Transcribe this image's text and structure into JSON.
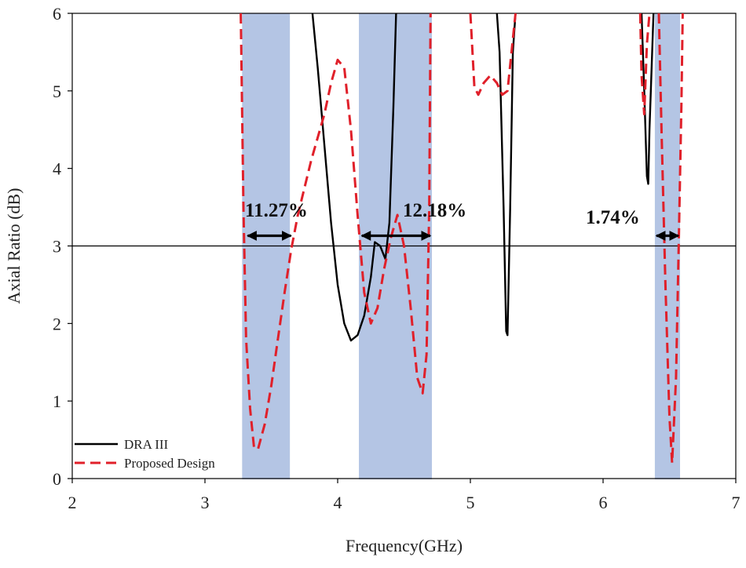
{
  "chart_data": {
    "type": "line",
    "xlabel": "Frequency(GHz)",
    "ylabel": "Axial Ratio (dB)",
    "xlim": [
      2,
      7
    ],
    "ylim": [
      0,
      6
    ],
    "xticks": [
      "2",
      "3",
      "4",
      "5",
      "6",
      "7"
    ],
    "yticks": [
      "0",
      "1",
      "2",
      "3",
      "4",
      "5",
      "6"
    ],
    "grid": false,
    "reference_line_y": 3,
    "legend_position": "bottom-left",
    "shaded_bands": [
      {
        "x0": 3.28,
        "x1": 3.64,
        "label": "11.27%",
        "arrow_x0": 3.31,
        "arrow_x1": 3.66
      },
      {
        "x0": 4.16,
        "x1": 4.71,
        "label": "12.18%",
        "arrow_x0": 4.17,
        "arrow_x1": 4.71
      },
      {
        "x0": 6.39,
        "x1": 6.58,
        "label": "1.74%",
        "arrow_x0": 6.39,
        "arrow_x1": 6.58
      }
    ],
    "series": [
      {
        "name": "DRA III",
        "color": "#000000",
        "style": "solid",
        "segments": [
          [
            [
              3.81,
              6.0
            ],
            [
              3.85,
              5.3
            ],
            [
              3.9,
              4.3
            ],
            [
              3.95,
              3.3
            ],
            [
              4.0,
              2.5
            ],
            [
              4.05,
              2.0
            ],
            [
              4.1,
              1.78
            ],
            [
              4.15,
              1.85
            ],
            [
              4.2,
              2.1
            ],
            [
              4.25,
              2.6
            ],
            [
              4.28,
              3.05
            ],
            [
              4.32,
              3.0
            ],
            [
              4.36,
              2.83
            ],
            [
              4.39,
              3.3
            ],
            [
              4.42,
              4.8
            ],
            [
              4.44,
              6.0
            ]
          ],
          [
            [
              5.2,
              6.0
            ],
            [
              5.22,
              5.5
            ],
            [
              5.25,
              3.5
            ],
            [
              5.27,
              1.9
            ],
            [
              5.28,
              1.85
            ],
            [
              5.3,
              3.5
            ],
            [
              5.32,
              5.5
            ],
            [
              5.34,
              6.0
            ]
          ],
          [
            [
              6.29,
              6.0
            ],
            [
              6.31,
              5.0
            ],
            [
              6.33,
              3.9
            ],
            [
              6.34,
              3.8
            ],
            [
              6.35,
              4.5
            ],
            [
              6.37,
              5.5
            ],
            [
              6.38,
              6.0
            ]
          ]
        ]
      },
      {
        "name": "Proposed Design",
        "color": "#e0202a",
        "style": "dashed",
        "segments": [
          [
            [
              3.27,
              6.0
            ],
            [
              3.29,
              3.5
            ],
            [
              3.31,
              1.8
            ],
            [
              3.34,
              0.9
            ],
            [
              3.37,
              0.4
            ],
            [
              3.4,
              0.38
            ],
            [
              3.45,
              0.7
            ],
            [
              3.5,
              1.2
            ],
            [
              3.55,
              1.8
            ],
            [
              3.6,
              2.4
            ],
            [
              3.65,
              2.95
            ],
            [
              3.7,
              3.4
            ],
            [
              3.8,
              4.1
            ],
            [
              3.9,
              4.7
            ],
            [
              3.95,
              5.1
            ],
            [
              4.0,
              5.4
            ],
            [
              4.05,
              5.3
            ],
            [
              4.1,
              4.5
            ],
            [
              4.15,
              3.4
            ],
            [
              4.2,
              2.4
            ],
            [
              4.25,
              2.0
            ],
            [
              4.3,
              2.2
            ],
            [
              4.35,
              2.7
            ],
            [
              4.4,
              3.1
            ],
            [
              4.45,
              3.4
            ],
            [
              4.5,
              3.0
            ],
            [
              4.55,
              2.2
            ],
            [
              4.6,
              1.3
            ],
            [
              4.64,
              1.1
            ],
            [
              4.67,
              1.6
            ],
            [
              4.69,
              3.5
            ],
            [
              4.7,
              6.0
            ]
          ],
          [
            [
              5.0,
              6.0
            ],
            [
              5.03,
              5.05
            ],
            [
              5.06,
              4.95
            ],
            [
              5.1,
              5.1
            ],
            [
              5.15,
              5.2
            ],
            [
              5.2,
              5.1
            ],
            [
              5.24,
              4.95
            ],
            [
              5.28,
              5.0
            ],
            [
              5.31,
              5.5
            ],
            [
              5.34,
              6.0
            ]
          ],
          [
            [
              6.28,
              6.0
            ],
            [
              6.29,
              5.2
            ],
            [
              6.31,
              4.7
            ],
            [
              6.33,
              5.6
            ],
            [
              6.35,
              6.0
            ]
          ],
          [
            [
              6.42,
              6.0
            ],
            [
              6.44,
              4.5
            ],
            [
              6.47,
              2.5
            ],
            [
              6.5,
              0.8
            ],
            [
              6.52,
              0.2
            ],
            [
              6.55,
              1.3
            ],
            [
              6.57,
              3.0
            ],
            [
              6.59,
              4.8
            ],
            [
              6.6,
              6.0
            ]
          ]
        ]
      }
    ]
  }
}
